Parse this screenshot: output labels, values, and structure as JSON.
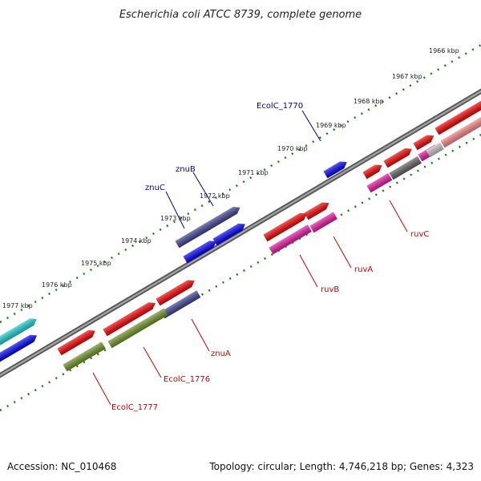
{
  "title": "Escherichia coli ATCC 8739, complete genome",
  "footer": {
    "accession": "Accession: NC_010468",
    "summary": "Topology: circular; Length: 4,746,218 bp; Genes: 4,323"
  },
  "ruler_ticks": [
    "1966 kbp",
    "1967 kbp",
    "1968 kbp",
    "1969 kbp",
    "1970 kbp",
    "1971 kbp",
    "1972 kbp",
    "1973 kbp",
    "1974 kbp",
    "1975 kbp",
    "1976 kbp",
    "1977 kbp"
  ],
  "gene_labels": {
    "ecolc_1770": "EcolC_1770",
    "znub": "znuB",
    "znuc": "znuC",
    "ruvc": "ruvC",
    "ruva": "ruvA",
    "ruvb": "ruvB",
    "znua": "znuA",
    "ecolc_1776": "EcolC_1776",
    "ecolc_1777": "EcolC_1777"
  },
  "colors": {
    "backbone": "#7d7d7d",
    "ruler": "#1e7a1e",
    "forward_label": "#0000a0",
    "reverse_label": "#cc0000"
  }
}
